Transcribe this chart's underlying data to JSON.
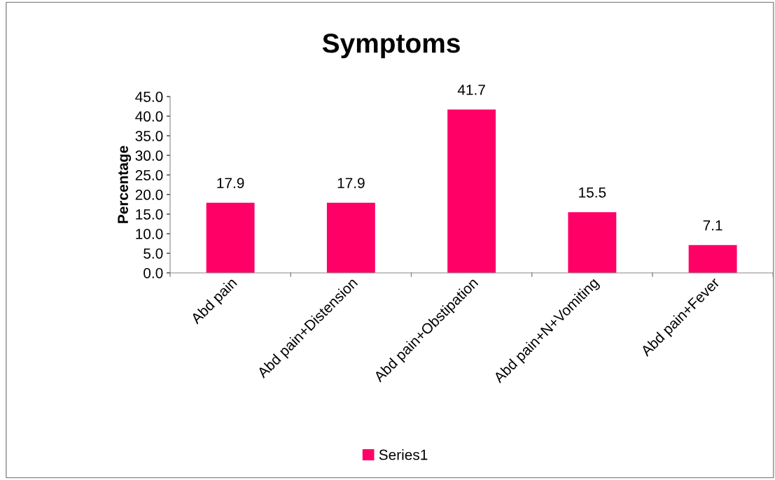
{
  "chart_data": {
    "type": "bar",
    "title": "Symptoms",
    "ylabel": "Percentage",
    "categories": [
      "Abd pain",
      "Abd pain+Distension",
      "Abd pain+Obstipation",
      "Abd pain+N+Vomiting",
      "Abd pain+Fever"
    ],
    "series": [
      {
        "name": "Series1",
        "color": "#ff0066",
        "values": [
          17.9,
          17.9,
          41.7,
          15.5,
          7.1
        ]
      }
    ],
    "ylim": [
      0,
      45
    ],
    "yticks": [
      {
        "value": 0,
        "label": "0.0"
      },
      {
        "value": 5,
        "label": "5.0"
      },
      {
        "value": 10,
        "label": "10.0"
      },
      {
        "value": 15,
        "label": "15.0"
      },
      {
        "value": 20,
        "label": "20.0"
      },
      {
        "value": 25,
        "label": "25.0"
      },
      {
        "value": 30,
        "label": "30.0"
      },
      {
        "value": 35,
        "label": "35.0"
      },
      {
        "value": 40,
        "label": "40.0"
      },
      {
        "value": 45,
        "label": "45.0"
      }
    ],
    "data_labels": true,
    "grid": false,
    "legend": "bottom"
  }
}
